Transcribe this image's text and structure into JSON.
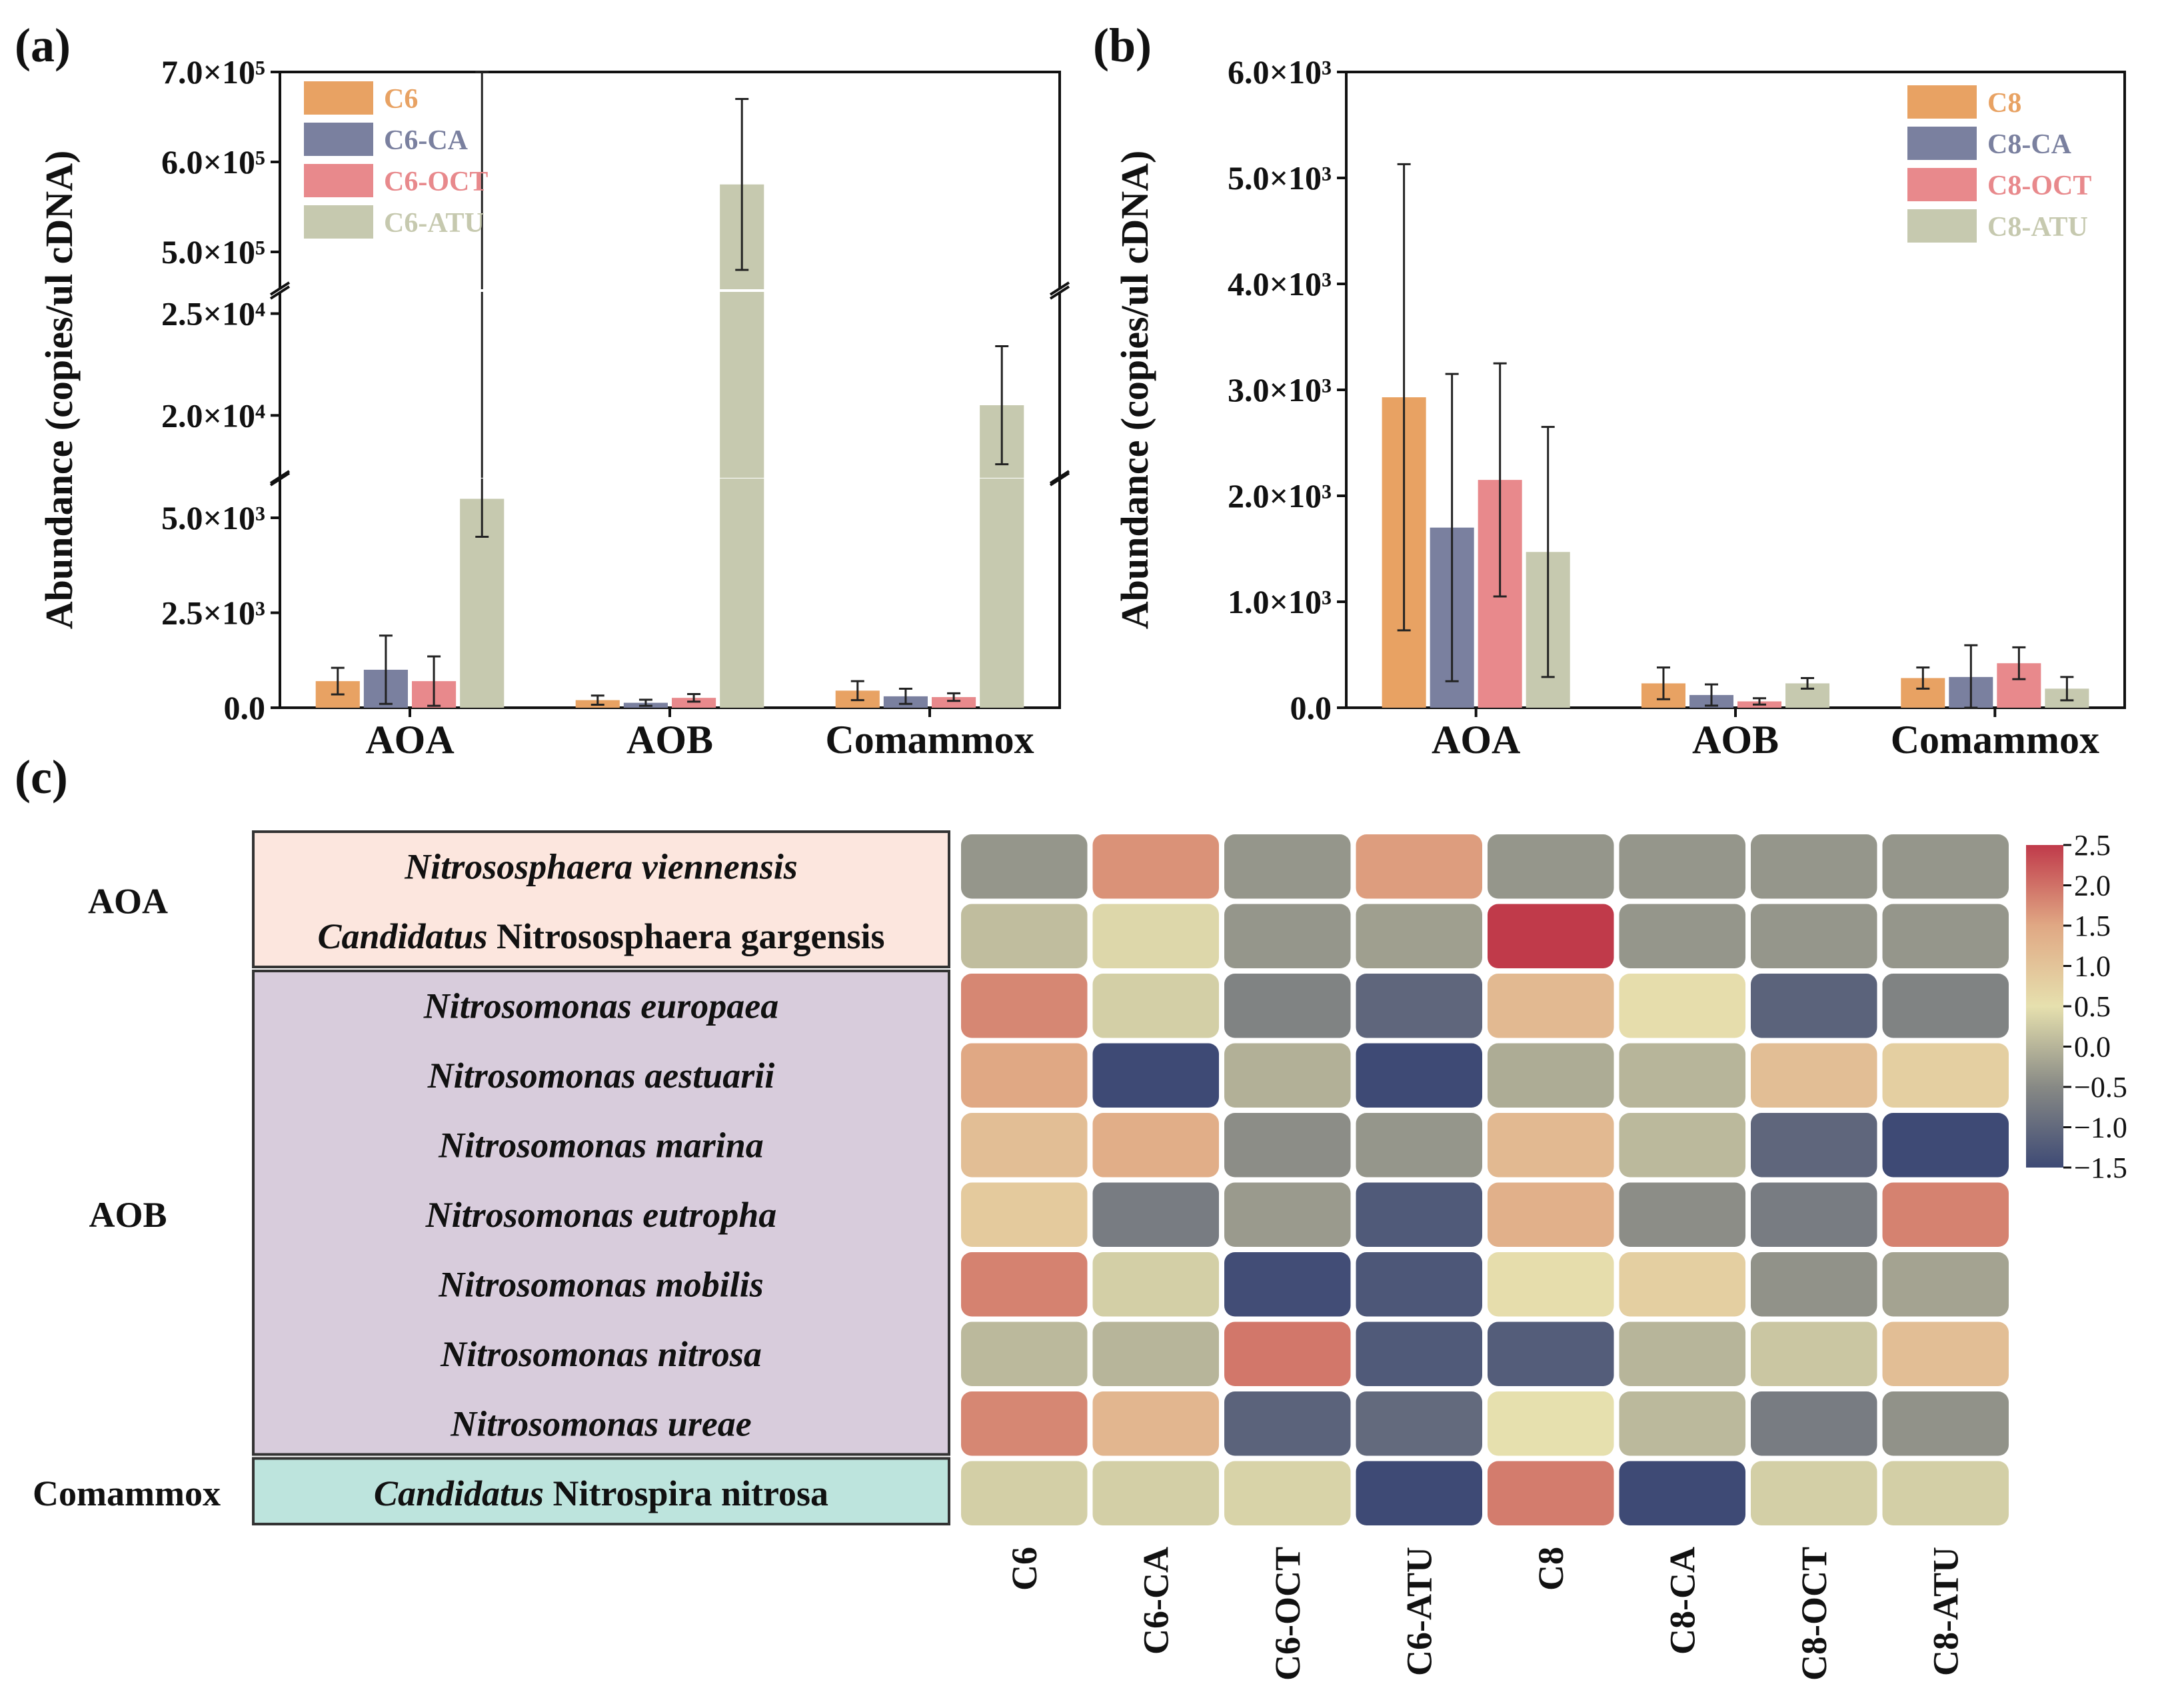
{
  "panels": {
    "a": "(a)",
    "b": "(b)",
    "c": "(c)"
  },
  "chart_data": [
    {
      "id": "a",
      "type": "bar",
      "title": "",
      "ylabel": "Abundance (copies/ul cDNA)",
      "xlabel": "",
      "categories": [
        "AOA",
        "AOB",
        "Comammox"
      ],
      "broken_axis": true,
      "ylim_segments": [
        [
          0,
          6000
        ],
        [
          17000,
          26000
        ],
        [
          460000,
          700000
        ]
      ],
      "yticks": [
        {
          "value": 0,
          "label": "0.0"
        },
        {
          "value": 2500,
          "label": "2.5×10³"
        },
        {
          "value": 5000,
          "label": "5.0×10³"
        },
        {
          "value": 20000,
          "label": "2.0×10⁴"
        },
        {
          "value": 25000,
          "label": "2.5×10⁴"
        },
        {
          "value": 500000,
          "label": "5.0×10⁵"
        },
        {
          "value": 600000,
          "label": "6.0×10⁵"
        },
        {
          "value": 700000,
          "label": "7.0×10⁵"
        }
      ],
      "legend_position": "top-left",
      "series": [
        {
          "name": "C6",
          "color": "#E8A263",
          "values": [
            700,
            200,
            450
          ],
          "errors": [
            350,
            120,
            250
          ]
        },
        {
          "name": "C6-CA",
          "color": "#7A809F",
          "values": [
            1000,
            130,
            300
          ],
          "errors": [
            900,
            80,
            200
          ]
        },
        {
          "name": "C6-OCT",
          "color": "#E8898C",
          "values": [
            700,
            260,
            280
          ],
          "errors": [
            650,
            100,
            100
          ]
        },
        {
          "name": "C6-ATU",
          "color": "#C6C9AF",
          "values": [
            5500,
            575000,
            20500
          ],
          "errors": [
            1000,
            95000,
            2900
          ]
        }
      ]
    },
    {
      "id": "b",
      "type": "bar",
      "title": "",
      "ylabel": "Abundance (copies/ul cDNA)",
      "xlabel": "",
      "categories": [
        "AOA",
        "AOB",
        "Comammox"
      ],
      "ylim": [
        0,
        6000
      ],
      "yticks": [
        {
          "value": 0,
          "label": "0.0"
        },
        {
          "value": 1000,
          "label": "1.0×10³"
        },
        {
          "value": 2000,
          "label": "2.0×10³"
        },
        {
          "value": 3000,
          "label": "3.0×10³"
        },
        {
          "value": 4000,
          "label": "4.0×10³"
        },
        {
          "value": 5000,
          "label": "5.0×10³"
        },
        {
          "value": 6000,
          "label": "6.0×10³"
        }
      ],
      "legend_position": "top-right",
      "series": [
        {
          "name": "C8",
          "color": "#E8A263",
          "values": [
            2930,
            230,
            280
          ],
          "errors": [
            2200,
            150,
            100
          ]
        },
        {
          "name": "C8-CA",
          "color": "#7A809F",
          "values": [
            1700,
            120,
            290
          ],
          "errors": [
            1450,
            100,
            300
          ]
        },
        {
          "name": "C8-OCT",
          "color": "#E8898C",
          "values": [
            2150,
            60,
            420
          ],
          "errors": [
            1100,
            30,
            150
          ]
        },
        {
          "name": "C8-ATU",
          "color": "#C6C9AF",
          "values": [
            1470,
            230,
            180
          ],
          "errors": [
            1180,
            50,
            110
          ]
        }
      ]
    },
    {
      "id": "c",
      "type": "heatmap",
      "title": "",
      "columns": [
        "C6",
        "C6-CA",
        "C6-OCT",
        "C6-ATU",
        "C8",
        "C8-CA",
        "C8-OCT",
        "C8-ATU"
      ],
      "groups": [
        {
          "name": "AOA",
          "color": "#FCE6DE",
          "rows": [
            "aoa0",
            "aoa1"
          ]
        },
        {
          "name": "AOB",
          "color": "#D8CCDC",
          "rows": [
            "aob0",
            "aob1",
            "aob2",
            "aob3",
            "aob4",
            "aob5",
            "aob6"
          ]
        },
        {
          "name": "Comammox",
          "color": "#BDE4DD",
          "rows": [
            "com0"
          ]
        }
      ],
      "rows": [
        {
          "id": "aoa0",
          "label_parts": [
            {
              "text": "Nitrososphaera viennensis",
              "italic": true
            }
          ]
        },
        {
          "id": "aoa1",
          "label_parts": [
            {
              "text": "Candidatus",
              "italic": true
            },
            {
              "text": " Nitrososphaera gargensis",
              "italic": false
            }
          ]
        },
        {
          "id": "aob0",
          "label_parts": [
            {
              "text": "Nitrosomonas europaea",
              "italic": true
            }
          ]
        },
        {
          "id": "aob1",
          "label_parts": [
            {
              "text": "Nitrosomonas aestuarii",
              "italic": true
            }
          ]
        },
        {
          "id": "aob2",
          "label_parts": [
            {
              "text": "Nitrosomonas marina",
              "italic": true
            }
          ]
        },
        {
          "id": "aob3",
          "label_parts": [
            {
              "text": "Nitrosomonas eutropha",
              "italic": true
            }
          ]
        },
        {
          "id": "aob4",
          "label_parts": [
            {
              "text": "Nitrosomonas mobilis",
              "italic": true
            }
          ]
        },
        {
          "id": "aob5",
          "label_parts": [
            {
              "text": "Nitrosomonas nitrosa",
              "italic": true
            }
          ]
        },
        {
          "id": "aob6",
          "label_parts": [
            {
              "text": "Nitrosomonas ureae",
              "italic": true
            }
          ]
        },
        {
          "id": "com0",
          "label_parts": [
            {
              "text": "Candidatus",
              "italic": true
            },
            {
              "text": " Nitrospira nitrosa",
              "italic": false
            }
          ]
        }
      ],
      "values": [
        [
          -0.35,
          1.7,
          -0.35,
          1.6,
          -0.35,
          -0.35,
          -0.35,
          -0.35
        ],
        [
          0.1,
          0.4,
          -0.35,
          -0.25,
          2.5,
          -0.35,
          -0.35,
          -0.35
        ],
        [
          1.8,
          0.3,
          -0.6,
          -1.05,
          1.2,
          0.55,
          -1.1,
          -0.6
        ],
        [
          1.5,
          -1.5,
          -0.05,
          -1.5,
          -0.1,
          0.0,
          1.1,
          0.8
        ],
        [
          1.1,
          1.4,
          -0.45,
          -0.35,
          1.2,
          0.05,
          -1.05,
          -1.5
        ],
        [
          0.9,
          -0.7,
          -0.3,
          -1.25,
          1.35,
          -0.45,
          -0.7,
          1.85
        ],
        [
          1.85,
          0.3,
          -1.45,
          -1.3,
          0.55,
          0.8,
          -0.4,
          -0.2
        ],
        [
          0.05,
          0.0,
          1.95,
          -1.25,
          -1.2,
          0.0,
          0.2,
          1.1
        ],
        [
          1.8,
          1.25,
          -1.1,
          -1.0,
          0.5,
          0.05,
          -0.7,
          -0.4
        ],
        [
          0.3,
          0.3,
          0.35,
          -1.5,
          1.9,
          -1.5,
          0.3,
          0.3
        ]
      ],
      "colorbar": {
        "min": -1.5,
        "max": 2.5,
        "ticks": [
          {
            "value": 2.5,
            "label": "2.5"
          },
          {
            "value": 2.0,
            "label": "2.0"
          },
          {
            "value": 1.5,
            "label": "1.5"
          },
          {
            "value": 1.0,
            "label": "1.0"
          },
          {
            "value": 0.5,
            "label": "0.5"
          },
          {
            "value": 0.0,
            "label": "0.0"
          },
          {
            "value": -0.5,
            "label": "−0.5"
          },
          {
            "value": -1.0,
            "label": "−1.0"
          },
          {
            "value": -1.5,
            "label": "−1.5"
          }
        ],
        "stops": [
          {
            "value": -1.5,
            "color": "#3E4A75"
          },
          {
            "value": -0.5,
            "color": "#878985"
          },
          {
            "value": 0.5,
            "color": "#E6E0AE"
          },
          {
            "value": 1.5,
            "color": "#E0A884"
          },
          {
            "value": 2.5,
            "color": "#C03A4A"
          }
        ]
      }
    }
  ]
}
